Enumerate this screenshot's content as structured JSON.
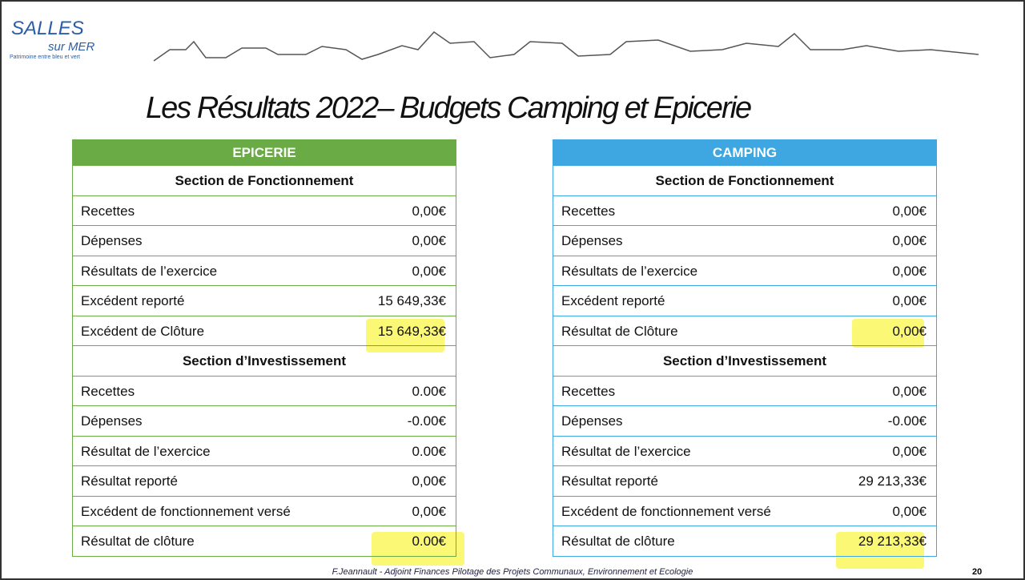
{
  "logo": {
    "name": "SALLES",
    "sub": "sur MER",
    "tagline": "Patrimoine entre bleu et vert"
  },
  "title": "Les Résultats 2022– Budgets Camping et Epicerie",
  "tables": [
    {
      "header": "EPICERIE",
      "sections": [
        {
          "title": "Section de Fonctionnement",
          "rows": [
            [
              "Recettes",
              "0,00€"
            ],
            [
              "Dépenses",
              "0,00€"
            ],
            [
              "Résultats de l’exercice",
              "0,00€"
            ],
            [
              "Excédent reporté",
              "15 649,33€"
            ],
            [
              "Excédent de Clôture",
              "15 649,33€"
            ]
          ]
        },
        {
          "title": "Section d’Investissement",
          "rows": [
            [
              "Recettes",
              "0.00€"
            ],
            [
              "Dépenses",
              "-0.00€"
            ],
            [
              "Résultat de l’exercice",
              "0.00€"
            ],
            [
              "Résultat reporté",
              "0,00€"
            ],
            [
              "Excédent de fonctionnement versé",
              "0,00€"
            ],
            [
              "Résultat de clôture",
              "0.00€"
            ]
          ]
        }
      ]
    },
    {
      "header": "CAMPING",
      "sections": [
        {
          "title": "Section de Fonctionnement",
          "rows": [
            [
              "Recettes",
              "0,00€"
            ],
            [
              "Dépenses",
              "0,00€"
            ],
            [
              "Résultats de l’exercice",
              "0,00€"
            ],
            [
              "Excédent reporté",
              "0,00€"
            ],
            [
              "Résultat de Clôture",
              "0,00€"
            ]
          ]
        },
        {
          "title": "Section d’Investissement",
          "rows": [
            [
              "Recettes",
              "0,00€"
            ],
            [
              "Dépenses",
              "-0.00€"
            ],
            [
              "Résultat de l’exercice",
              "0,00€"
            ],
            [
              "Résultat reporté",
              "29 213,33€"
            ],
            [
              "Excédent de fonctionnement versé",
              "0,00€"
            ],
            [
              "Résultat de clôture",
              "29 213,33€"
            ]
          ]
        }
      ]
    }
  ],
  "footer": "F.Jeannault - Adjoint Finances Pilotage des Projets Communaux, Environnement et Ecologie",
  "page_number": "20"
}
